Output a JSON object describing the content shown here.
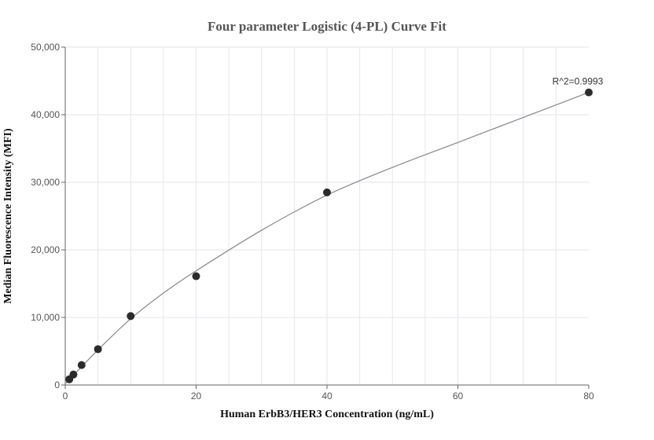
{
  "chart_data": {
    "type": "scatter",
    "title": "Four parameter Logistic (4-PL) Curve Fit",
    "xlabel": "Human ErbB3/HER3 Concentration (ng/mL)",
    "ylabel": "Median Fluorescence Intensity (MFI)",
    "xlim": [
      0,
      80
    ],
    "ylim": [
      0,
      50000
    ],
    "x_ticks": [
      0,
      20,
      40,
      60,
      80
    ],
    "x_tick_labels": [
      "0",
      "20",
      "40",
      "60",
      "80"
    ],
    "y_ticks": [
      0,
      10000,
      20000,
      30000,
      40000,
      50000
    ],
    "y_tick_labels": [
      "0",
      "10,000",
      "20,000",
      "30,000",
      "40,000",
      "50,000"
    ],
    "grid": true,
    "series": [
      {
        "type": "scatter",
        "x": [
          0.625,
          1.25,
          2.5,
          5,
          10,
          20,
          40,
          80
        ],
        "y": [
          850,
          1550,
          2950,
          5300,
          10200,
          16100,
          28500,
          43300
        ]
      }
    ],
    "fit_curve": {
      "type": "4-PL",
      "x": [
        0,
        0.625,
        1.25,
        2.5,
        5,
        10,
        15,
        20,
        30,
        40,
        50,
        60,
        70,
        80
      ],
      "y": [
        200,
        800,
        1450,
        2700,
        5200,
        9800,
        13600,
        16900,
        22900,
        28100,
        32200,
        35900,
        39600,
        43300
      ]
    },
    "annotations": [
      {
        "text": "R^2=0.9993",
        "x": 80,
        "y": 43300
      }
    ],
    "colors": {
      "points": "#2b2b2b",
      "curve": "#888888",
      "grid": "#e6e6ee",
      "axis": "#666666"
    }
  }
}
